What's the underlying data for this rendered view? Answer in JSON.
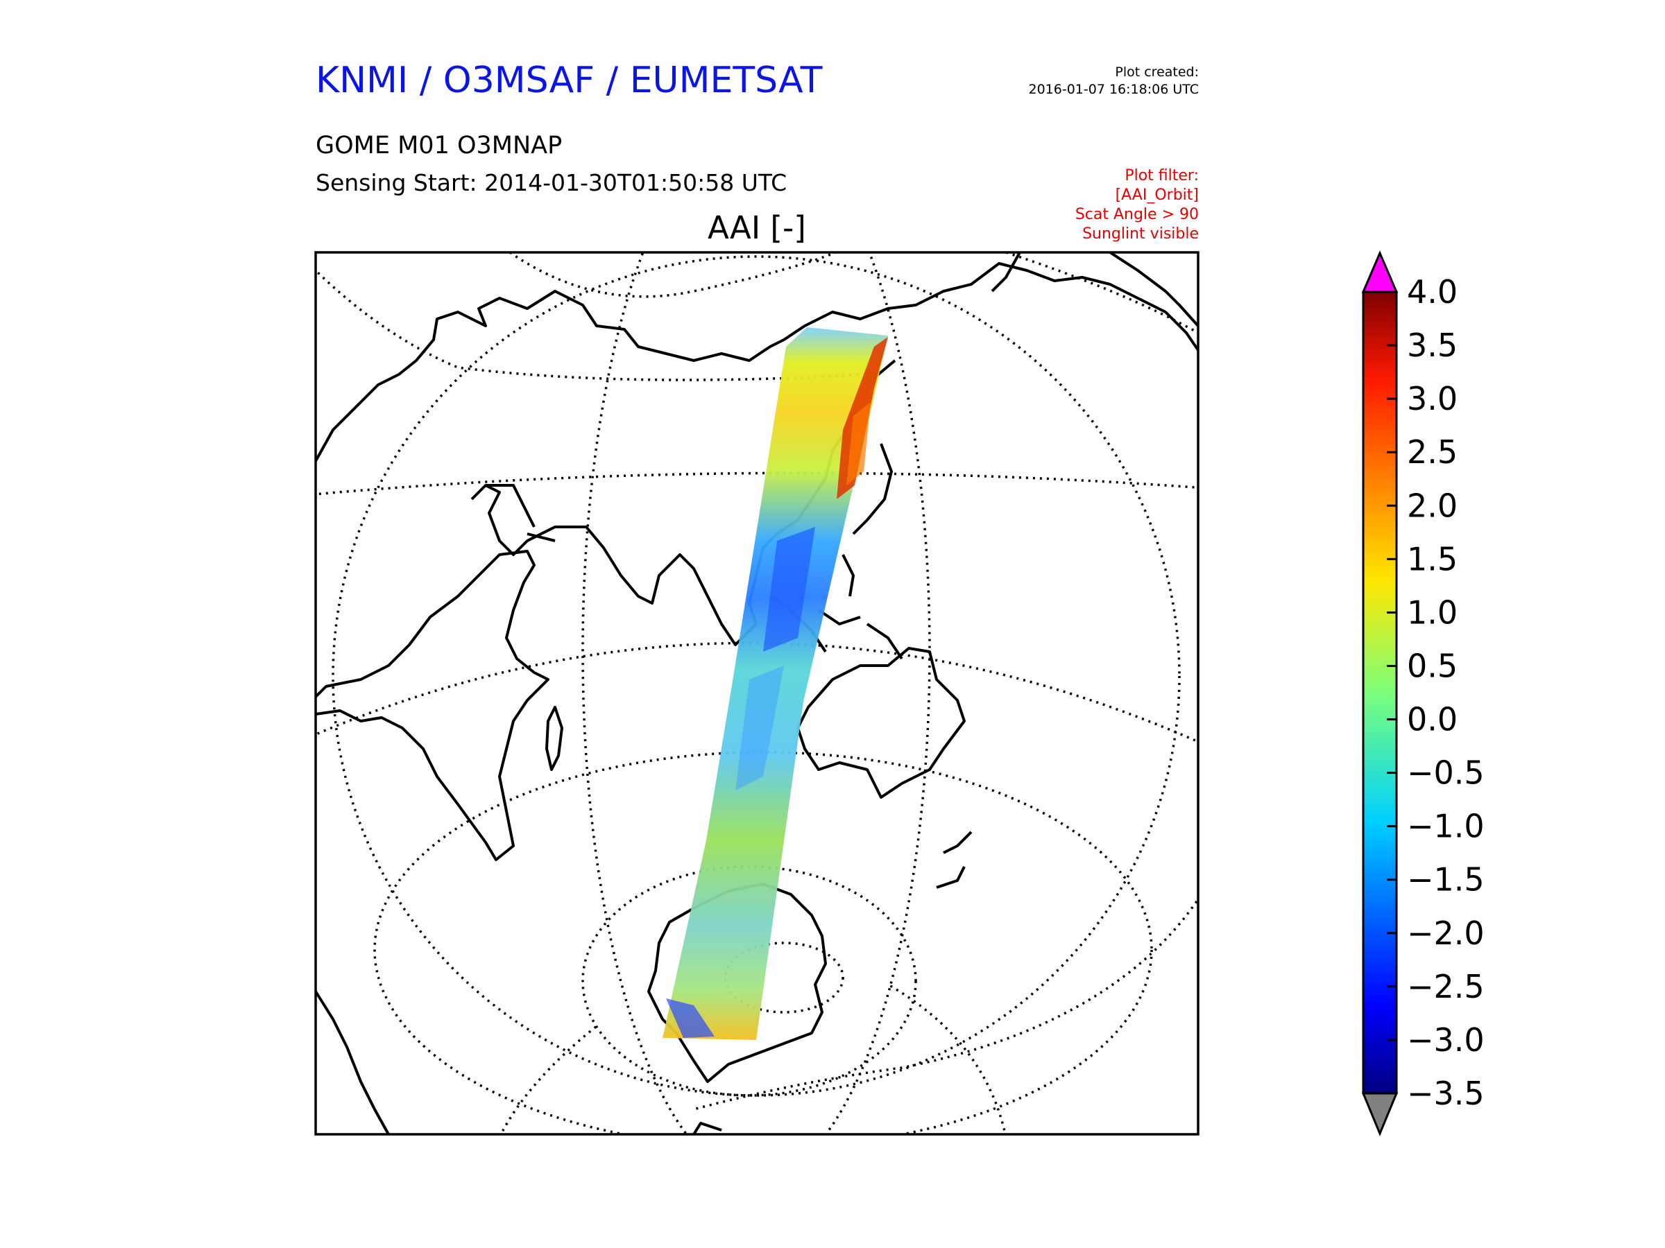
{
  "header": {
    "agency": "KNMI / O3MSAF / EUMETSAT",
    "created_label": "Plot created:",
    "created_value": "2016-01-07 16:18:06 UTC",
    "product": "GOME M01 O3MNAP",
    "sensing_start": "Sensing Start: 2014-01-30T01:50:58 UTC",
    "filter_lines": [
      "Plot filter:",
      "[AAI_Orbit]",
      "Scat Angle > 90",
      "Sunglint visible"
    ]
  },
  "map": {
    "title": "AAI [-]",
    "projection": "orthographic",
    "graticule": "dotted",
    "coastlines_color": "#000000"
  },
  "colorbar": {
    "ticks": [
      "4.0",
      "3.5",
      "3.0",
      "2.5",
      "2.0",
      "1.5",
      "1.0",
      "0.5",
      "0.0",
      "−0.5",
      "−1.0",
      "−1.5",
      "−2.0",
      "−2.5",
      "−3.0",
      "−3.5"
    ],
    "range": [
      -3.5,
      4.0
    ],
    "over_color": "#ff00ff",
    "under_color": "#808080",
    "colormap": "jet"
  }
}
